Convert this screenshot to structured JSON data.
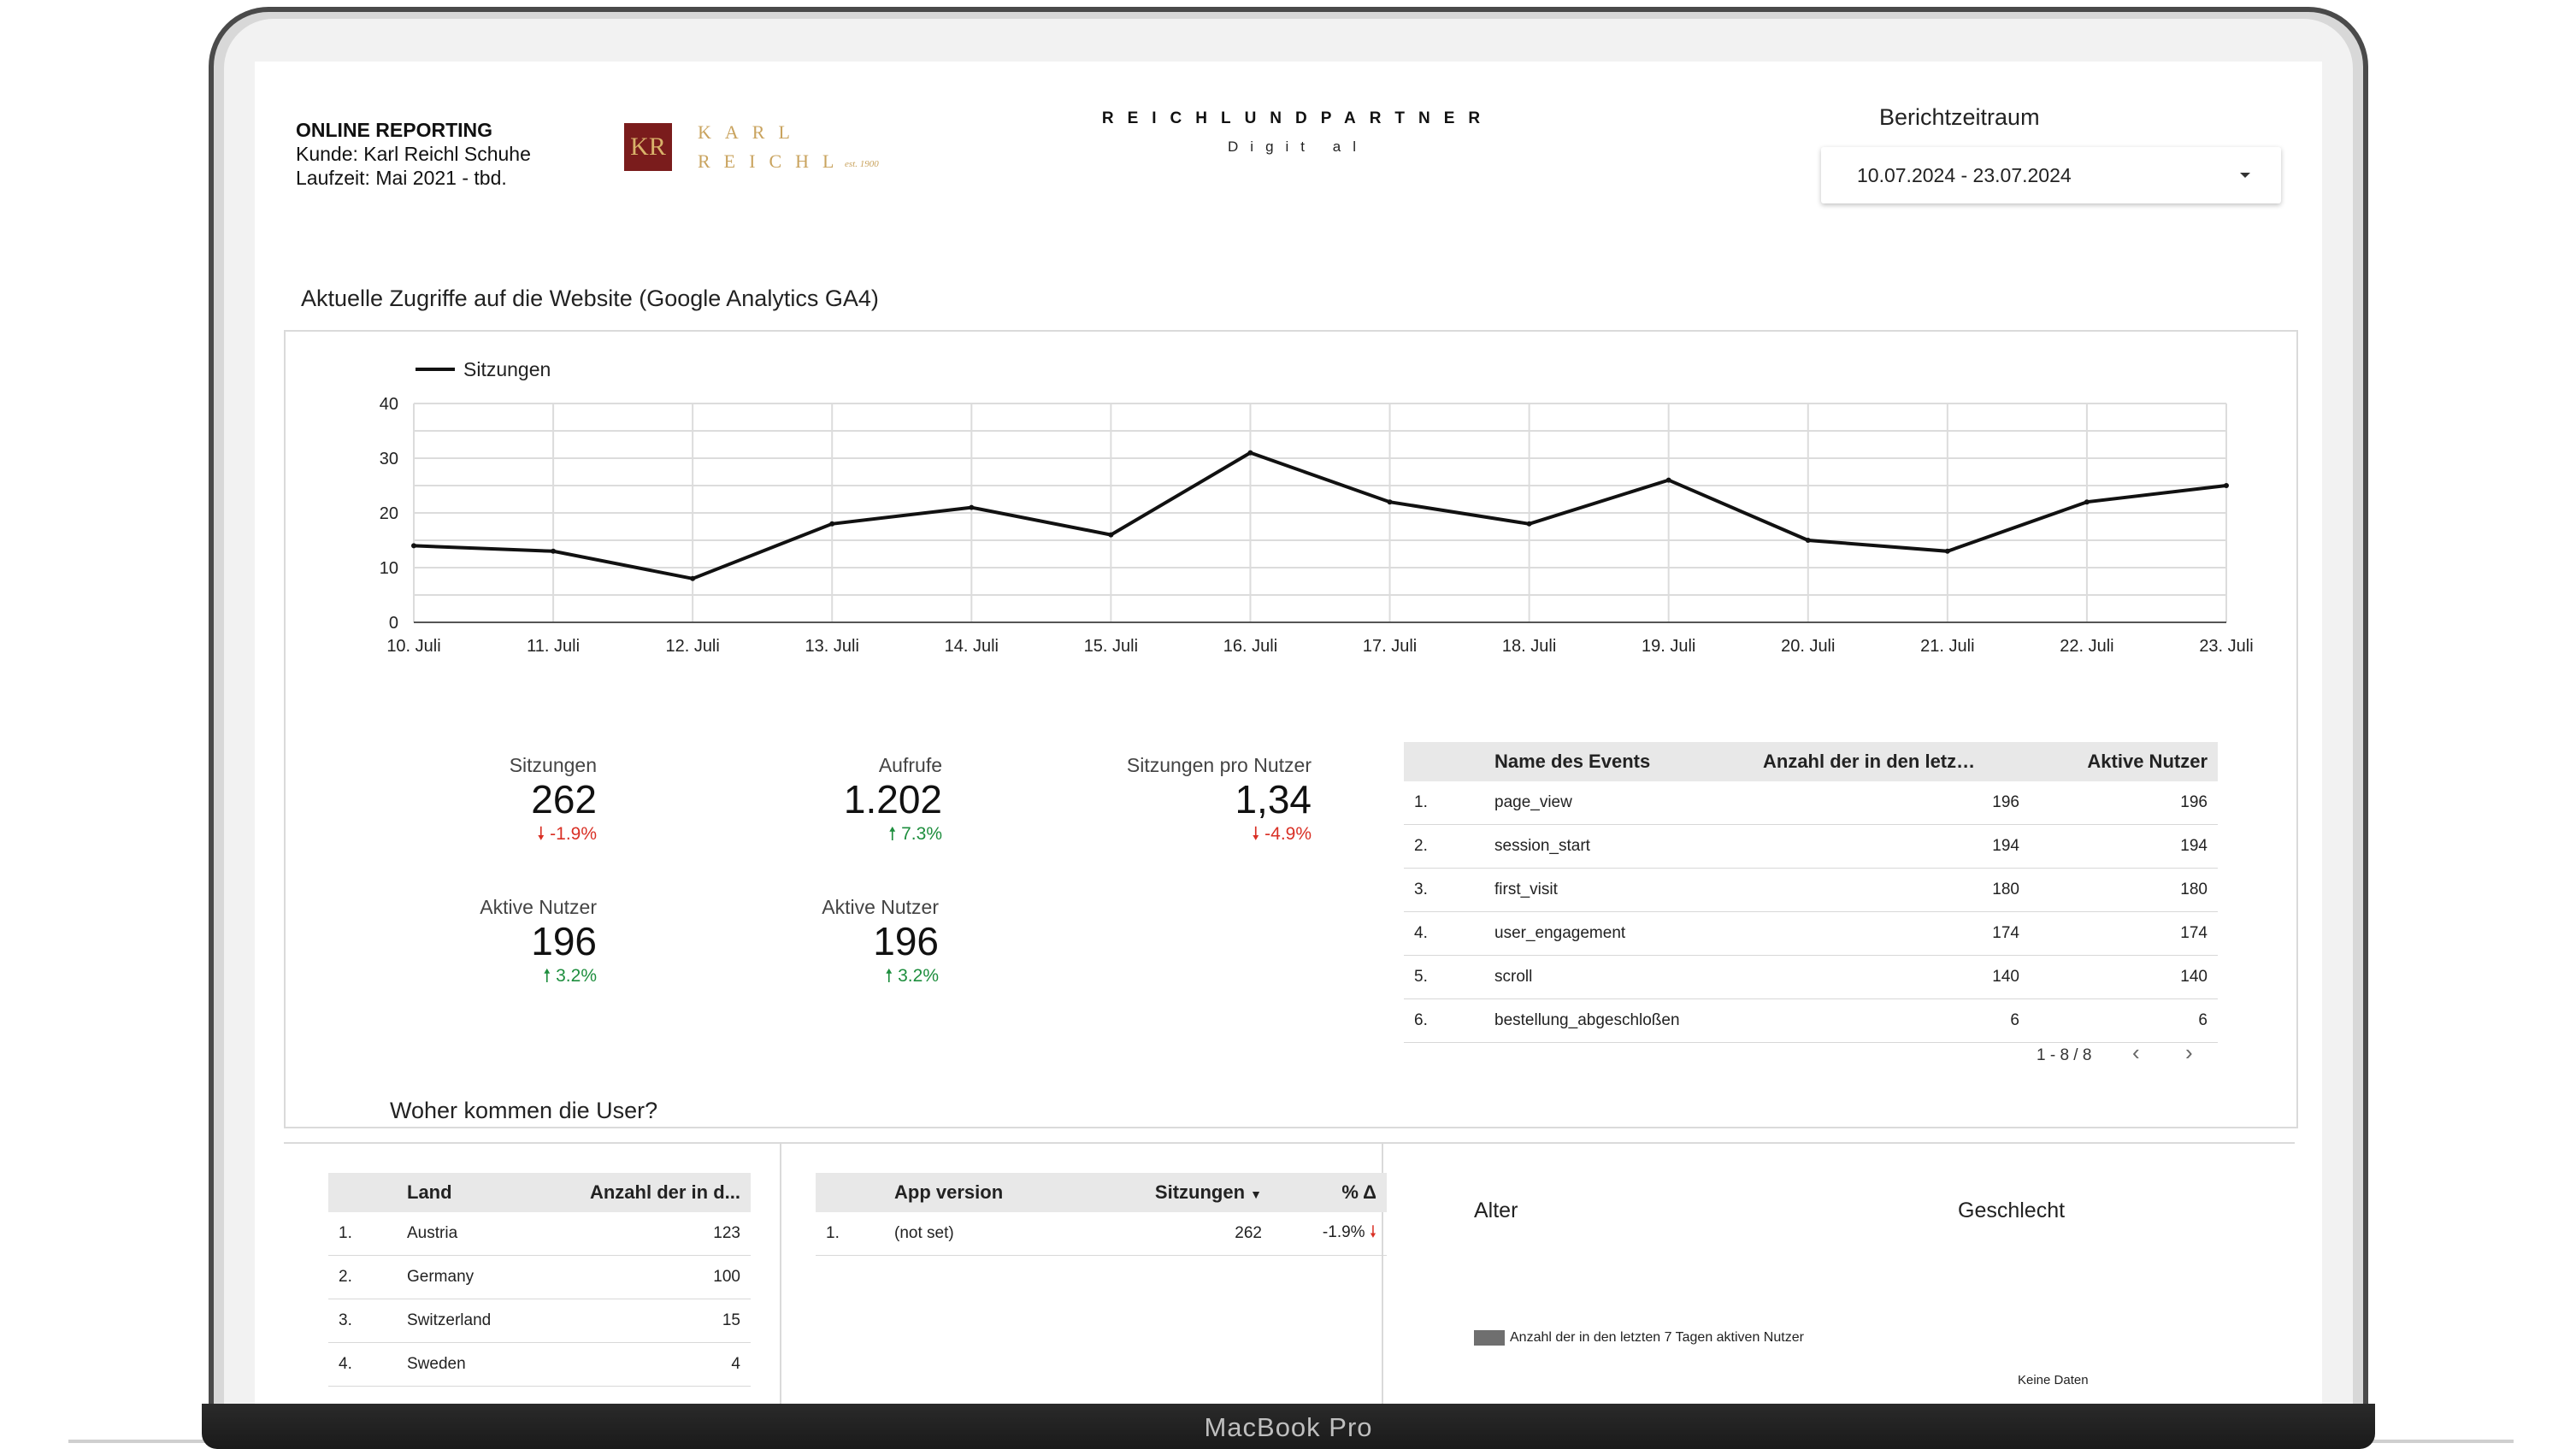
{
  "device": {
    "label": "MacBook Pro"
  },
  "header": {
    "report_title": "ONLINE REPORTING",
    "client_line": "Kunde: Karl Reichl Schuhe",
    "runtime_line": "Laufzeit: Mai 2021 - tbd.",
    "logo": {
      "monogram": "KR",
      "line1": "KARL",
      "line2": "REICHL",
      "est": "est. 1900"
    },
    "brand": {
      "name": "REICHLUNDPARTNER",
      "sub": "Digit al"
    }
  },
  "period": {
    "label": "Berichtzeitraum",
    "value": "10.07.2024 - 23.07.2024"
  },
  "chart_section": {
    "title": "Aktuelle Zugriffe auf die Website (Google Analytics GA4)"
  },
  "chart_data": {
    "type": "line",
    "title": "",
    "xlabel": "",
    "ylabel": "",
    "series": [
      {
        "name": "Sitzungen",
        "values": [
          14,
          13,
          8,
          18,
          21,
          16,
          31,
          22,
          18,
          26,
          15,
          13,
          22,
          25
        ]
      }
    ],
    "categories": [
      "10. Juli",
      "11. Juli",
      "12. Juli",
      "13. Juli",
      "14. Juli",
      "15. Juli",
      "16. Juli",
      "17. Juli",
      "18. Juli",
      "19. Juli",
      "20. Juli",
      "21. Juli",
      "22. Juli",
      "23. Juli"
    ],
    "ylim": [
      0,
      40
    ],
    "yticks": [
      "0",
      "10",
      "20",
      "30",
      "40"
    ],
    "grid": true,
    "legend": "top-left"
  },
  "kpis": [
    {
      "label": "Sitzungen",
      "value": "262",
      "delta": "-1.9%",
      "dir": "down"
    },
    {
      "label": "Aufrufe",
      "value": "1.202",
      "delta": "7.3%",
      "dir": "up"
    },
    {
      "label": "Sitzungen pro Nutzer",
      "value": "1,34",
      "delta": "-4.9%",
      "dir": "down"
    },
    {
      "label": "Aktive Nutzer",
      "value": "196",
      "delta": "3.2%",
      "dir": "up"
    },
    {
      "label": "Aktive Nutzer",
      "value": "196",
      "delta": "3.2%",
      "dir": "up"
    }
  ],
  "events_table": {
    "headers": [
      "Name des Events",
      "Anzahl der in den letz…",
      "Aktive Nutzer"
    ],
    "rows": [
      [
        "1.",
        "page_view",
        "196",
        "196"
      ],
      [
        "2.",
        "session_start",
        "194",
        "194"
      ],
      [
        "3.",
        "first_visit",
        "180",
        "180"
      ],
      [
        "4.",
        "user_engagement",
        "174",
        "174"
      ],
      [
        "5.",
        "scroll",
        "140",
        "140"
      ],
      [
        "6.",
        "bestellung_abgeschloßen",
        "6",
        "6"
      ]
    ],
    "pagination": "1 - 8 / 8"
  },
  "origin_section": {
    "title": "Woher kommen die User?"
  },
  "country_table": {
    "headers": [
      "Land",
      "Anzahl der in d..."
    ],
    "rows": [
      [
        "1.",
        "Austria",
        "123"
      ],
      [
        "2.",
        "Germany",
        "100"
      ],
      [
        "3.",
        "Switzerland",
        "15"
      ],
      [
        "4.",
        "Sweden",
        "4"
      ]
    ]
  },
  "app_table": {
    "headers": [
      "App version",
      "Sitzungen",
      "% Δ"
    ],
    "rows": [
      [
        "1.",
        "(not set)",
        "262",
        "-1.9%"
      ]
    ]
  },
  "demo": {
    "age_title": "Alter",
    "gender_title": "Geschlecht",
    "age_legend": "Anzahl der in den letzten 7 Tagen aktiven Nutzer",
    "no_data": "Keine Daten"
  },
  "colors": {
    "accent_down": "#d93025",
    "accent_up": "#1e8e3e",
    "logo_bg": "#7a1c1c",
    "logo_gold": "#c9a35e"
  }
}
